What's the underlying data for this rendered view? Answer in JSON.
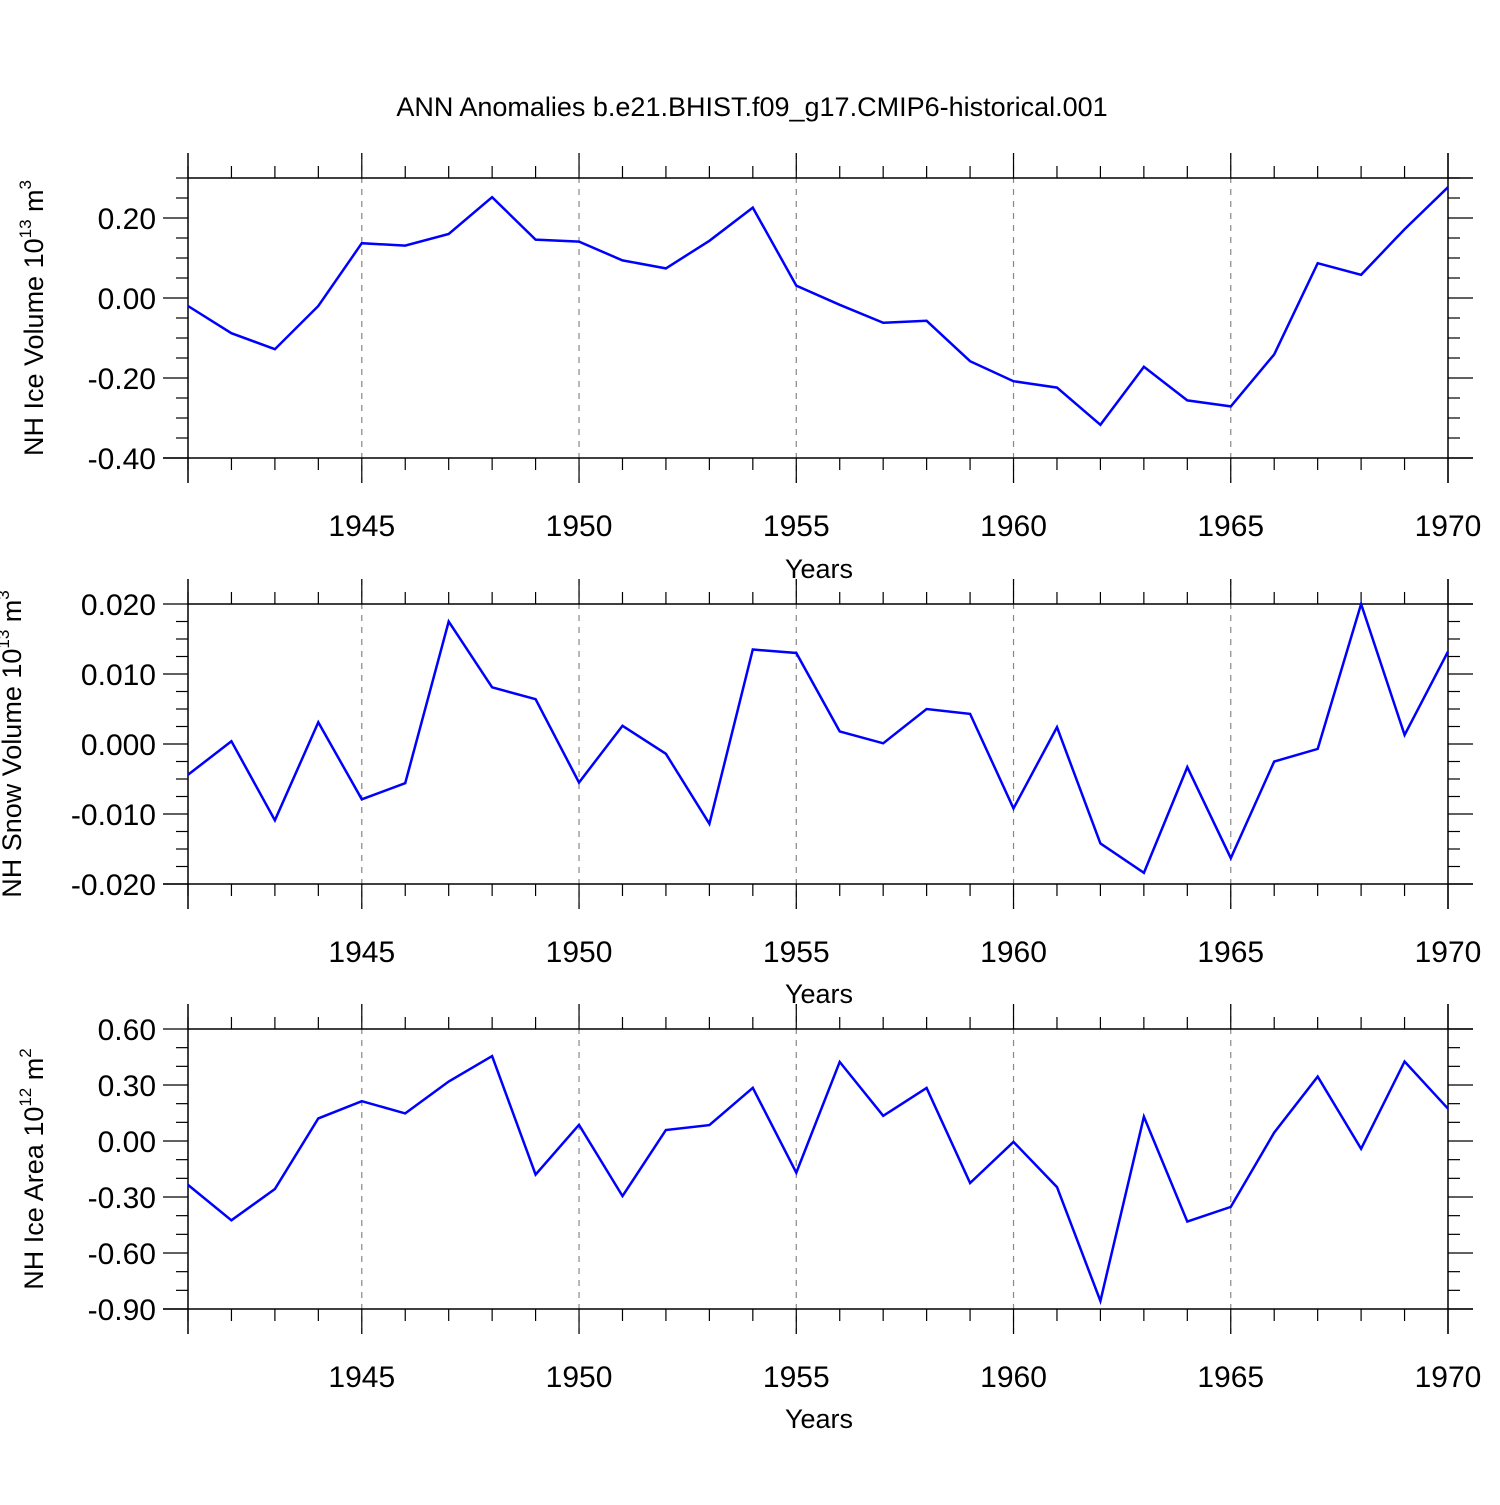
{
  "title": "ANN Anomalies b.e21.BHIST.f09_g17.CMIP6-historical.001",
  "colors": {
    "line": "#0000ff",
    "axis": "#000000",
    "grid": "#888888"
  },
  "chart_data": [
    {
      "type": "line",
      "ylabel": "NH Ice Volume 10",
      "ylabel_exp": "13",
      "ylabel_unit": " m",
      "ylabel_unit_exp": "3",
      "xlabel": "Years",
      "xlim": [
        1941,
        1970
      ],
      "ylim": [
        -0.4,
        0.3
      ],
      "yticks": [
        -0.4,
        -0.2,
        0.0,
        0.2
      ],
      "yminor_step": 0.05,
      "ytick_labels": [
        "-0.40",
        "-0.20",
        "0.00",
        "0.20"
      ],
      "xticks": [
        1945,
        1950,
        1955,
        1960,
        1965,
        1970
      ],
      "xtick_labels": [
        "1945",
        "1950",
        "1955",
        "1960",
        "1965",
        "1970"
      ],
      "grid": "vertical dashed at major x ticks",
      "series": [
        {
          "x": [
            1941,
            1942,
            1943,
            1944,
            1945,
            1946,
            1947,
            1948,
            1949,
            1950,
            1951,
            1952,
            1953,
            1954,
            1955,
            1956,
            1957,
            1958,
            1959,
            1960,
            1961,
            1962,
            1963,
            1964,
            1965,
            1966,
            1967,
            1968,
            1969,
            1970
          ],
          "values": [
            -0.02,
            -0.088,
            -0.128,
            -0.02,
            0.137,
            0.131,
            0.16,
            0.252,
            0.146,
            0.141,
            0.094,
            0.074,
            0.143,
            0.226,
            0.031,
            -0.017,
            -0.062,
            -0.057,
            -0.158,
            -0.208,
            -0.224,
            -0.317,
            -0.172,
            -0.256,
            -0.271,
            -0.141,
            0.087,
            0.058,
            0.172,
            0.277
          ]
        }
      ]
    },
    {
      "type": "line",
      "ylabel": "NH Snow Volume 10",
      "ylabel_exp": "13",
      "ylabel_unit": " m",
      "ylabel_unit_exp": "3",
      "xlabel": "Years",
      "xlim": [
        1941,
        1970
      ],
      "ylim": [
        -0.02,
        0.02
      ],
      "yticks": [
        -0.02,
        -0.01,
        0.0,
        0.01,
        0.02
      ],
      "yminor_step": 0.0025,
      "ytick_labels": [
        "-0.020",
        "-0.010",
        "0.000",
        "0.010",
        "0.020"
      ],
      "xticks": [
        1945,
        1950,
        1955,
        1960,
        1965,
        1970
      ],
      "xtick_labels": [
        "1945",
        "1950",
        "1955",
        "1960",
        "1965",
        "1970"
      ],
      "grid": "vertical dashed at major x ticks",
      "series": [
        {
          "x": [
            1941,
            1942,
            1943,
            1944,
            1945,
            1946,
            1947,
            1948,
            1949,
            1950,
            1951,
            1952,
            1953,
            1954,
            1955,
            1956,
            1957,
            1958,
            1959,
            1960,
            1961,
            1962,
            1963,
            1964,
            1965,
            1966,
            1967,
            1968,
            1969,
            1970
          ],
          "values": [
            -0.0044,
            0.0004,
            -0.0109,
            0.0031,
            -0.0079,
            -0.0056,
            0.0175,
            0.0081,
            0.0064,
            -0.0055,
            0.0026,
            -0.0014,
            -0.0114,
            0.0135,
            0.013,
            0.0018,
            0.0001,
            0.005,
            0.0043,
            -0.0092,
            0.0024,
            -0.0142,
            -0.0184,
            -0.0033,
            -0.0163,
            -0.0025,
            -0.0007,
            0.02,
            0.0013,
            0.0132
          ]
        }
      ]
    },
    {
      "type": "line",
      "ylabel": "NH Ice Area 10",
      "ylabel_exp": "12",
      "ylabel_unit": " m",
      "ylabel_unit_exp": "2",
      "xlabel": "Years",
      "xlim": [
        1941,
        1970
      ],
      "ylim": [
        -0.9,
        0.6
      ],
      "yticks": [
        -0.9,
        -0.6,
        -0.3,
        0.0,
        0.3,
        0.6
      ],
      "yminor_step": 0.1,
      "ytick_labels": [
        "-0.90",
        "-0.60",
        "-0.30",
        "0.00",
        "0.30",
        "0.60"
      ],
      "xticks": [
        1945,
        1950,
        1955,
        1960,
        1965,
        1970
      ],
      "xtick_labels": [
        "1945",
        "1950",
        "1955",
        "1960",
        "1965",
        "1970"
      ],
      "grid": "vertical dashed at major x ticks",
      "series": [
        {
          "x": [
            1941,
            1942,
            1943,
            1944,
            1945,
            1946,
            1947,
            1948,
            1949,
            1950,
            1951,
            1952,
            1953,
            1954,
            1955,
            1956,
            1957,
            1958,
            1959,
            1960,
            1961,
            1962,
            1963,
            1964,
            1965,
            1966,
            1967,
            1968,
            1969,
            1970
          ],
          "values": [
            -0.235,
            -0.425,
            -0.257,
            0.121,
            0.213,
            0.148,
            0.319,
            0.455,
            -0.18,
            0.087,
            -0.295,
            0.059,
            0.085,
            0.285,
            -0.17,
            0.424,
            0.135,
            0.284,
            -0.225,
            -0.005,
            -0.247,
            -0.857,
            0.13,
            -0.432,
            -0.353,
            0.045,
            0.345,
            -0.042,
            0.426,
            0.173
          ]
        }
      ]
    }
  ]
}
